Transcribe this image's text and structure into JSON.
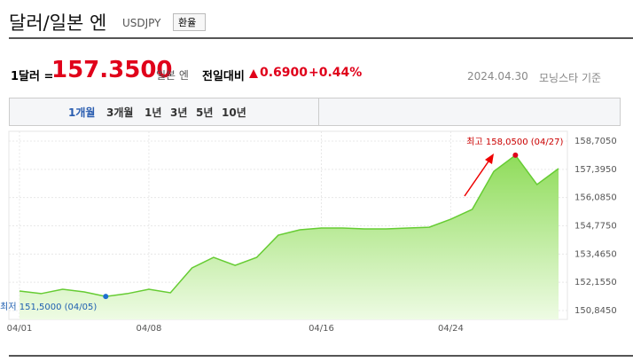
{
  "header": {
    "title": "달러/일본 엔",
    "code": "USDJPY",
    "button": "환율"
  },
  "quote": {
    "unit": "1달러 =",
    "price": "157.3500",
    "currency": "일본 엔",
    "change_label": "전일대비",
    "change": "0.6900",
    "change_pct": "+0.44%",
    "date": "2024.04.30",
    "source": "모닝스타 기준"
  },
  "tabs": [
    "1개월",
    "3개월",
    "1년",
    "3년",
    "5년",
    "10년"
  ],
  "chart_data": {
    "type": "area",
    "color": "#66cc33",
    "grid": true,
    "categories": [
      "04/01",
      null,
      null,
      null,
      null,
      null,
      "04/08",
      null,
      null,
      null,
      null,
      null,
      null,
      null,
      "04/16",
      null,
      null,
      null,
      null,
      null,
      "04/24",
      null,
      null,
      null,
      null,
      null
    ],
    "values": [
      151.75,
      151.63,
      151.83,
      151.71,
      151.5,
      151.63,
      151.83,
      151.67,
      152.82,
      153.31,
      152.94,
      153.31,
      154.34,
      154.59,
      154.67,
      154.67,
      154.63,
      154.63,
      154.67,
      154.71,
      155.08,
      155.54,
      157.3,
      158.05,
      156.69,
      157.43
    ],
    "ylim": [
      150.845,
      158.705
    ],
    "yticks": [
      {
        "value": 158.705,
        "label": "158,7050"
      },
      {
        "value": 157.395,
        "label": "157,3950"
      },
      {
        "value": 156.085,
        "label": "156,0850"
      },
      {
        "value": 154.775,
        "label": "154,7750"
      },
      {
        "value": 153.465,
        "label": "153,4650"
      },
      {
        "value": 152.155,
        "label": "152,1550"
      },
      {
        "value": 150.845,
        "label": "150,8450"
      }
    ],
    "annotations": [
      {
        "text": "최고 158,0500 (04/27)",
        "index": 23
      },
      {
        "text": "최저 151,5000 (04/05)",
        "index": 4
      }
    ]
  }
}
